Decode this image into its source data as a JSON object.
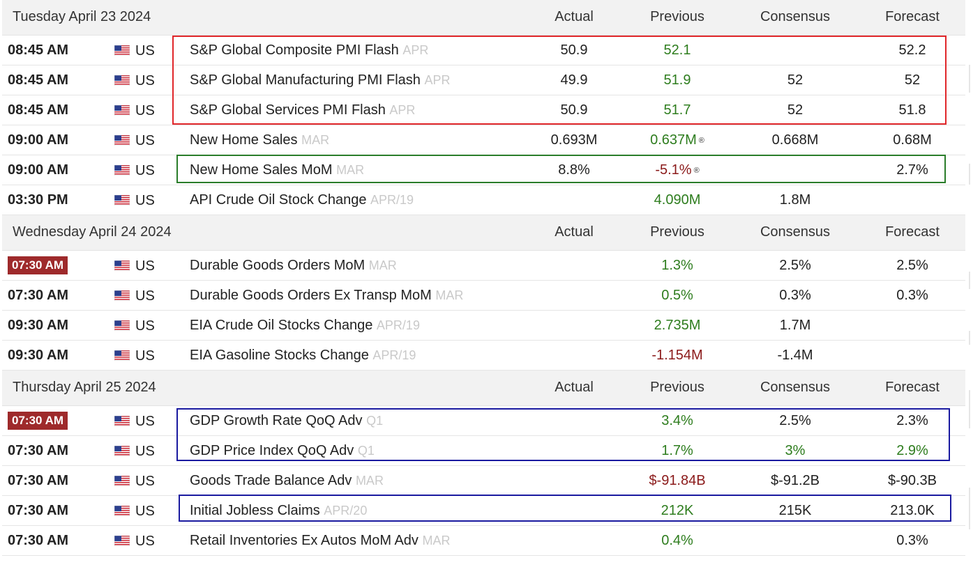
{
  "headers": {
    "actual": "Actual",
    "previous": "Previous",
    "consensus": "Consensus",
    "forecast": "Forecast"
  },
  "days": [
    {
      "name": "Tuesday April 23 2024",
      "rows": [
        {
          "time": "08:45 AM",
          "badge": false,
          "country": "US",
          "event": "S&P Global Composite PMI Flash",
          "ref": "APR",
          "actual": "50.9",
          "previous": "52.1",
          "prev_color": "green",
          "revised": "",
          "consensus": "",
          "cons_color": "",
          "forecast": "52.2",
          "fore_color": ""
        },
        {
          "time": "08:45 AM",
          "badge": false,
          "country": "US",
          "event": "S&P Global Manufacturing PMI Flash",
          "ref": "APR",
          "actual": "49.9",
          "previous": "51.9",
          "prev_color": "green",
          "revised": "",
          "consensus": "52",
          "cons_color": "",
          "forecast": "52",
          "fore_color": ""
        },
        {
          "time": "08:45 AM",
          "badge": false,
          "country": "US",
          "event": "S&P Global Services PMI Flash",
          "ref": "APR",
          "actual": "50.9",
          "previous": "51.7",
          "prev_color": "green",
          "revised": "",
          "consensus": "52",
          "cons_color": "",
          "forecast": "51.8",
          "fore_color": ""
        },
        {
          "time": "09:00 AM",
          "badge": false,
          "country": "US",
          "event": "New Home Sales",
          "ref": "MAR",
          "actual": "0.693M",
          "previous": "0.637M",
          "prev_color": "green",
          "revised": "®",
          "consensus": "0.668M",
          "cons_color": "",
          "forecast": "0.68M",
          "fore_color": ""
        },
        {
          "time": "09:00 AM",
          "badge": false,
          "country": "US",
          "event": "New Home Sales MoM",
          "ref": "MAR",
          "actual": "8.8%",
          "previous": "-5.1%",
          "prev_color": "red",
          "revised": "®",
          "consensus": "",
          "cons_color": "",
          "forecast": "2.7%",
          "fore_color": ""
        },
        {
          "time": "03:30 PM",
          "badge": false,
          "country": "US",
          "event": "API Crude Oil Stock Change",
          "ref": "APR/19",
          "actual": "",
          "previous": "4.090M",
          "prev_color": "green",
          "revised": "",
          "consensus": "1.8M",
          "cons_color": "",
          "forecast": "",
          "fore_color": ""
        }
      ]
    },
    {
      "name": "Wednesday April 24 2024",
      "rows": [
        {
          "time": "07:30 AM",
          "badge": true,
          "country": "US",
          "event": "Durable Goods Orders MoM",
          "ref": "MAR",
          "actual": "",
          "previous": "1.3%",
          "prev_color": "green",
          "revised": "",
          "consensus": "2.5%",
          "cons_color": "",
          "forecast": "2.5%",
          "fore_color": ""
        },
        {
          "time": "07:30 AM",
          "badge": false,
          "country": "US",
          "event": "Durable Goods Orders Ex Transp MoM",
          "ref": "MAR",
          "actual": "",
          "previous": "0.5%",
          "prev_color": "green",
          "revised": "",
          "consensus": "0.3%",
          "cons_color": "",
          "forecast": "0.3%",
          "fore_color": ""
        },
        {
          "time": "09:30 AM",
          "badge": false,
          "country": "US",
          "event": "EIA Crude Oil Stocks Change",
          "ref": "APR/19",
          "actual": "",
          "previous": "2.735M",
          "prev_color": "green",
          "revised": "",
          "consensus": "1.7M",
          "cons_color": "",
          "forecast": "",
          "fore_color": ""
        },
        {
          "time": "09:30 AM",
          "badge": false,
          "country": "US",
          "event": "EIA Gasoline Stocks Change",
          "ref": "APR/19",
          "actual": "",
          "previous": "-1.154M",
          "prev_color": "red",
          "revised": "",
          "consensus": "-1.4M",
          "cons_color": "",
          "forecast": "",
          "fore_color": ""
        }
      ]
    },
    {
      "name": "Thursday April 25 2024",
      "rows": [
        {
          "time": "07:30 AM",
          "badge": true,
          "country": "US",
          "event": "GDP Growth Rate QoQ Adv",
          "ref": "Q1",
          "actual": "",
          "previous": "3.4%",
          "prev_color": "green",
          "revised": "",
          "consensus": "2.5%",
          "cons_color": "",
          "forecast": "2.3%",
          "fore_color": ""
        },
        {
          "time": "07:30 AM",
          "badge": false,
          "country": "US",
          "event": "GDP Price Index QoQ Adv",
          "ref": "Q1",
          "actual": "",
          "previous": "1.7%",
          "prev_color": "green",
          "revised": "",
          "consensus": "3%",
          "cons_color": "green",
          "forecast": "2.9%",
          "fore_color": "green"
        },
        {
          "time": "07:30 AM",
          "badge": false,
          "country": "US",
          "event": "Goods Trade Balance Adv",
          "ref": "MAR",
          "actual": "",
          "previous": "$-91.84B",
          "prev_color": "red",
          "revised": "",
          "consensus": "$-91.2B",
          "cons_color": "",
          "forecast": "$-90.3B",
          "fore_color": ""
        },
        {
          "time": "07:30 AM",
          "badge": false,
          "country": "US",
          "event": "Initial Jobless Claims",
          "ref": "APR/20",
          "actual": "",
          "previous": "212K",
          "prev_color": "green",
          "revised": "",
          "consensus": "215K",
          "cons_color": "",
          "forecast": "213.0K",
          "fore_color": ""
        },
        {
          "time": "07:30 AM",
          "badge": false,
          "country": "US",
          "event": "Retail Inventories Ex Autos MoM Adv",
          "ref": "MAR",
          "actual": "",
          "previous": "0.4%",
          "prev_color": "green",
          "revised": "",
          "consensus": "",
          "cons_color": "",
          "forecast": "0.3%",
          "fore_color": ""
        }
      ]
    }
  ],
  "highlights": [
    {
      "name": "highlight-box-pmi",
      "color": "#e0262a"
    },
    {
      "name": "highlight-box-new-home-sales-mom",
      "color": "#2a7d2a"
    },
    {
      "name": "highlight-box-gdp",
      "color": "#1a1aa0"
    },
    {
      "name": "highlight-box-jobless-claims",
      "color": "#1a1aa0"
    }
  ],
  "icons": {
    "flag": "us-flag-icon",
    "revised": "revised-icon"
  }
}
